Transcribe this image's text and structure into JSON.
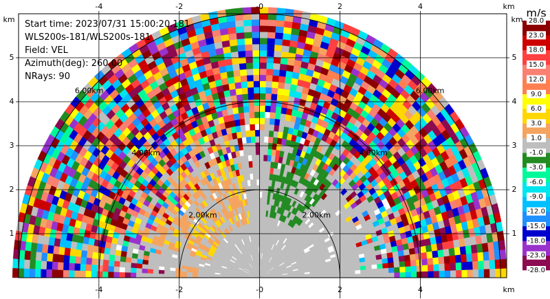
{
  "chart_data": {
    "type": "ppi",
    "info": [
      "Start time: 2023/07/31 15:00:20.181",
      "WLS200s-181/WLS200s-181",
      "Field: VEL",
      "Azimuth(deg): 260.00",
      "NRays: 90"
    ],
    "x_label": "km",
    "y_label": "km",
    "xlim": [
      -6,
      6.15
    ],
    "ylim": [
      0,
      6
    ],
    "xticks": [
      -4,
      -2,
      {
        "value": 0,
        "label": "-0"
      },
      2,
      4
    ],
    "yticks": [
      1,
      2,
      3,
      4,
      5
    ],
    "rings": [
      {
        "radius": 2,
        "label": "2.00km"
      },
      {
        "radius": 4,
        "label": "4.00km"
      },
      {
        "radius": 6,
        "label": "6.00km"
      }
    ],
    "grid": true,
    "colorbar": {
      "title": "m/s",
      "ticks": [
        {
          "value": -28,
          "label": "-28.0"
        },
        {
          "value": -23,
          "label": "-23.0"
        },
        {
          "value": -18,
          "label": "-18.0"
        },
        {
          "value": -15,
          "label": "-15.0"
        },
        {
          "value": -12,
          "label": "-12.0"
        },
        {
          "value": -9,
          "label": "-9.0"
        },
        {
          "value": -6,
          "label": "-6.0"
        },
        {
          "value": -3,
          "label": "-3.0"
        },
        {
          "value": -1,
          "label": "-1.0"
        },
        {
          "value": 1,
          "label": "1.0"
        },
        {
          "value": 3,
          "label": "3.0"
        },
        {
          "value": 6,
          "label": "6.0"
        },
        {
          "value": 9,
          "label": "9.0"
        },
        {
          "value": 12,
          "label": "12.0"
        },
        {
          "value": 15,
          "label": "15.0"
        },
        {
          "value": 18,
          "label": "18.0"
        },
        {
          "value": 23,
          "label": "23.0"
        },
        {
          "value": 28,
          "label": "28.0"
        }
      ],
      "colors": [
        "#8b0a50",
        "#9932cc",
        "#0000cd",
        "#1e90ff",
        "#00bfff",
        "#00e5ee",
        "#00fa9a",
        "#228b22",
        "#bebebe",
        "#f4a460",
        "#ffd700",
        "#ffff00",
        "#ff7f50",
        "#fa8072",
        "#ff4040",
        "#cd0000",
        "#8b0000"
      ]
    }
  }
}
